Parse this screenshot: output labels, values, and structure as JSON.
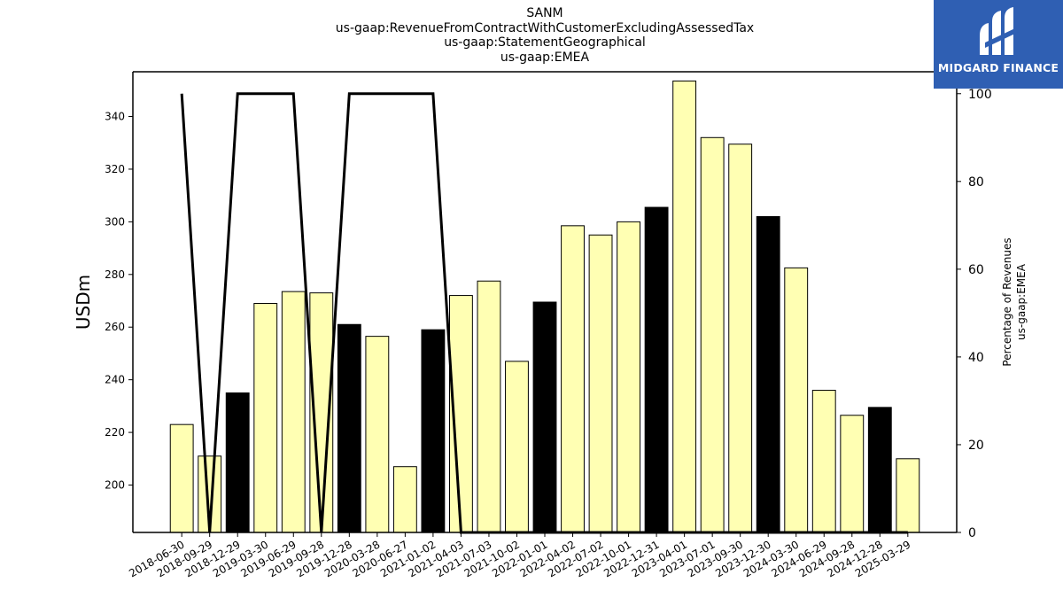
{
  "chart_data": {
    "type": "bar",
    "title_lines": [
      "SANM",
      "us-gaap:RevenueFromContractWithCustomerExcludingAssessedTax",
      "us-gaap:StatementGeographical",
      "us-gaap:EMEA"
    ],
    "ylabel": "USDm",
    "y2label_lines": [
      "Percentage of Revenues",
      "us-gaap:EMEA"
    ],
    "ylim": [
      182,
      357
    ],
    "y_ticks": [
      200,
      220,
      240,
      260,
      280,
      300,
      320,
      340
    ],
    "y2lim": [
      0,
      105
    ],
    "y2_ticks": [
      0,
      20,
      40,
      60,
      80,
      100
    ],
    "categories": [
      "2018-06-30",
      "2018-09-29",
      "2018-12-29",
      "2019-03-30",
      "2019-06-29",
      "2019-09-28",
      "2019-12-28",
      "2020-03-28",
      "2020-06-27",
      "2021-01-02",
      "2021-04-03",
      "2021-07-03",
      "2021-10-02",
      "2022-01-01",
      "2022-04-02",
      "2022-07-02",
      "2022-10-01",
      "2022-12-31",
      "2023-04-01",
      "2023-07-01",
      "2023-09-30",
      "2023-12-30",
      "2024-03-30",
      "2024-06-29",
      "2024-09-28",
      "2024-12-28",
      "2025-03-29"
    ],
    "values": [
      223,
      211,
      235,
      269,
      273.5,
      273,
      261,
      256.5,
      207,
      259,
      272,
      277.5,
      247,
      269.5,
      298.5,
      295,
      300,
      305.5,
      353.5,
      332,
      329.5,
      302,
      282.5,
      236,
      226.5,
      229.5,
      210
    ],
    "bar_colors": [
      "#ffffb3",
      "#ffffb3",
      "#000000",
      "#ffffb3",
      "#ffffb3",
      "#ffffb3",
      "#000000",
      "#ffffb3",
      "#ffffb3",
      "#000000",
      "#ffffb3",
      "#ffffb3",
      "#ffffb3",
      "#000000",
      "#ffffb3",
      "#ffffb3",
      "#ffffb3",
      "#000000",
      "#ffffb3",
      "#ffffb3",
      "#ffffb3",
      "#000000",
      "#ffffb3",
      "#ffffb3",
      "#ffffb3",
      "#000000",
      "#ffffb3"
    ],
    "line_series": {
      "axis": "secondary",
      "values": [
        100,
        0,
        100,
        100,
        100,
        0,
        100,
        100,
        100,
        100,
        0,
        0,
        0,
        0,
        0,
        0,
        0,
        0,
        0,
        0,
        0,
        0,
        0,
        0,
        0,
        0,
        0
      ],
      "color": "#000000"
    },
    "grid": false
  },
  "logo": {
    "text": "MIDGARD FINANCE",
    "background": "#2f5fb3"
  }
}
